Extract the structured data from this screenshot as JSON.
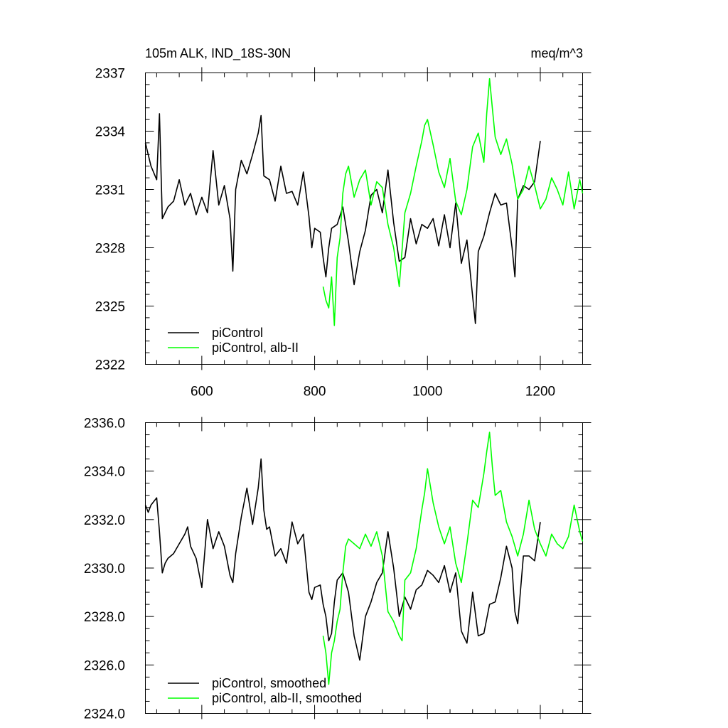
{
  "chart_data": [
    {
      "type": "line",
      "title": "105m ALK, IND_18S-30N",
      "units": "meq/m^3",
      "xlim": [
        500,
        1275
      ],
      "ylim": [
        2322,
        2337
      ],
      "xticks": [
        600,
        800,
        1000,
        1200
      ],
      "xtick_labels": [
        "600",
        "800",
        "1000",
        "1200"
      ],
      "yticks": [
        2322,
        2325,
        2328,
        2331,
        2334,
        2337
      ],
      "ytick_labels": [
        "2322",
        "2325",
        "2328",
        "2331",
        "2334",
        "2337"
      ],
      "legend_position": "bottom-left",
      "series": [
        {
          "name": "piControl",
          "color": "#000000",
          "x": [
            500,
            510,
            520,
            525,
            530,
            540,
            550,
            560,
            570,
            580,
            590,
            600,
            610,
            620,
            630,
            640,
            650,
            655,
            660,
            670,
            680,
            690,
            700,
            705,
            710,
            720,
            730,
            740,
            750,
            760,
            770,
            780,
            790,
            795,
            800,
            810,
            815,
            820,
            825,
            830,
            840,
            850,
            860,
            870,
            880,
            890,
            900,
            910,
            920,
            930,
            940,
            950,
            960,
            970,
            980,
            990,
            1000,
            1010,
            1020,
            1030,
            1040,
            1050,
            1060,
            1070,
            1080,
            1085,
            1090,
            1100,
            1110,
            1120,
            1130,
            1140,
            1150,
            1155,
            1160,
            1170,
            1180,
            1190,
            1200
          ],
          "y": [
            2333.4,
            2332.2,
            2331.5,
            2334.9,
            2329.5,
            2330.1,
            2330.4,
            2331.5,
            2330.2,
            2330.8,
            2329.7,
            2330.6,
            2329.8,
            2333.0,
            2330.2,
            2331.2,
            2329.5,
            2326.8,
            2331.0,
            2332.5,
            2331.8,
            2332.8,
            2333.9,
            2334.8,
            2331.7,
            2331.5,
            2330.4,
            2332.2,
            2330.8,
            2330.9,
            2330.2,
            2331.9,
            2329.6,
            2328.0,
            2329.0,
            2328.8,
            2327.5,
            2326.5,
            2328.0,
            2329.0,
            2329.2,
            2330.1,
            2328.3,
            2326.1,
            2327.8,
            2328.9,
            2330.7,
            2331.0,
            2329.8,
            2332.0,
            2329.3,
            2327.3,
            2327.5,
            2329.5,
            2328.2,
            2329.2,
            2329.0,
            2329.5,
            2328.1,
            2329.7,
            2328.0,
            2330.3,
            2327.2,
            2328.4,
            2325.5,
            2324.1,
            2327.8,
            2328.6,
            2329.8,
            2330.8,
            2330.2,
            2330.3,
            2328.0,
            2326.5,
            2330.5,
            2331.2,
            2331.0,
            2331.4,
            2333.5
          ]
        },
        {
          "name": "piControl, alb-II",
          "color": "#00ff00",
          "x": [
            815,
            820,
            825,
            830,
            835,
            840,
            845,
            850,
            855,
            860,
            870,
            880,
            890,
            900,
            910,
            920,
            930,
            940,
            950,
            960,
            970,
            980,
            990,
            995,
            1000,
            1010,
            1020,
            1030,
            1040,
            1050,
            1060,
            1070,
            1080,
            1090,
            1100,
            1105,
            1110,
            1115,
            1120,
            1130,
            1140,
            1150,
            1160,
            1170,
            1180,
            1190,
            1200,
            1210,
            1220,
            1230,
            1240,
            1250,
            1260,
            1270,
            1275
          ],
          "y": [
            2326.0,
            2325.3,
            2324.9,
            2326.5,
            2324.0,
            2327.5,
            2328.5,
            2330.8,
            2331.8,
            2332.2,
            2330.6,
            2331.5,
            2332.0,
            2330.2,
            2331.4,
            2331.1,
            2329.2,
            2328.0,
            2326.0,
            2329.8,
            2330.8,
            2332.2,
            2333.5,
            2334.3,
            2334.6,
            2333.3,
            2331.9,
            2331.1,
            2332.6,
            2330.4,
            2329.7,
            2331.0,
            2333.2,
            2333.9,
            2332.4,
            2334.9,
            2336.7,
            2335.2,
            2333.7,
            2332.8,
            2333.6,
            2332.3,
            2330.5,
            2331.0,
            2332.2,
            2331.2,
            2330.0,
            2330.5,
            2331.6,
            2331.0,
            2330.2,
            2331.9,
            2330.0,
            2331.5,
            2330.8
          ]
        }
      ]
    },
    {
      "type": "line",
      "xlim": [
        500,
        1275
      ],
      "ylim": [
        2324,
        2336
      ],
      "xticks": [
        600,
        800,
        1000,
        1200
      ],
      "yticks": [
        2324,
        2326,
        2328,
        2330,
        2332,
        2334,
        2336
      ],
      "ytick_labels": [
        "2324.0",
        "2326.0",
        "2328.0",
        "2330.0",
        "2332.0",
        "2334.0",
        "2336.0"
      ],
      "legend_position": "bottom-left",
      "series": [
        {
          "name": "piControl, smoothed",
          "color": "#000000",
          "x": [
            500,
            505,
            510,
            520,
            525,
            530,
            535,
            540,
            550,
            560,
            570,
            575,
            580,
            590,
            600,
            610,
            620,
            630,
            640,
            650,
            655,
            660,
            670,
            680,
            690,
            700,
            705,
            710,
            715,
            720,
            730,
            740,
            750,
            760,
            770,
            780,
            790,
            795,
            800,
            810,
            815,
            820,
            825,
            830,
            835,
            840,
            850,
            860,
            870,
            880,
            890,
            900,
            910,
            920,
            930,
            940,
            950,
            960,
            970,
            980,
            990,
            1000,
            1010,
            1020,
            1030,
            1040,
            1050,
            1060,
            1070,
            1080,
            1090,
            1100,
            1110,
            1120,
            1130,
            1140,
            1150,
            1155,
            1160,
            1170,
            1180,
            1190,
            1200
          ],
          "y": [
            2332.6,
            2332.3,
            2332.6,
            2332.9,
            2331.5,
            2329.8,
            2330.2,
            2330.4,
            2330.6,
            2331.0,
            2331.4,
            2331.7,
            2330.9,
            2330.4,
            2329.2,
            2332.0,
            2330.8,
            2331.5,
            2330.9,
            2329.7,
            2329.4,
            2330.6,
            2332.1,
            2333.3,
            2331.8,
            2333.3,
            2334.5,
            2332.4,
            2331.6,
            2331.7,
            2330.5,
            2330.8,
            2330.2,
            2331.9,
            2331.0,
            2331.4,
            2329.0,
            2328.7,
            2329.2,
            2329.3,
            2328.5,
            2328.0,
            2327.0,
            2327.3,
            2328.6,
            2329.5,
            2329.8,
            2329.0,
            2327.2,
            2326.2,
            2328.0,
            2328.6,
            2329.4,
            2329.8,
            2331.5,
            2330.0,
            2328.0,
            2328.8,
            2328.3,
            2329.1,
            2329.3,
            2329.9,
            2329.7,
            2329.4,
            2330.1,
            2329.0,
            2329.8,
            2327.4,
            2326.9,
            2329.0,
            2327.2,
            2327.3,
            2328.5,
            2328.6,
            2329.6,
            2330.9,
            2330.0,
            2328.2,
            2327.7,
            2330.5,
            2330.5,
            2330.3,
            2331.9
          ]
        },
        {
          "name": "piControl, alb-II, smoothed",
          "color": "#00ff00",
          "x": [
            815,
            820,
            825,
            830,
            835,
            840,
            845,
            850,
            855,
            860,
            870,
            880,
            890,
            900,
            910,
            920,
            930,
            940,
            950,
            955,
            960,
            970,
            980,
            990,
            995,
            1000,
            1010,
            1020,
            1030,
            1040,
            1050,
            1060,
            1070,
            1080,
            1090,
            1100,
            1105,
            1110,
            1115,
            1120,
            1130,
            1140,
            1150,
            1160,
            1170,
            1180,
            1190,
            1200,
            1210,
            1220,
            1230,
            1240,
            1250,
            1260,
            1270,
            1275
          ],
          "y": [
            2327.2,
            2326.5,
            2325.2,
            2326.5,
            2327.0,
            2327.8,
            2328.3,
            2329.8,
            2330.9,
            2331.2,
            2331.0,
            2330.8,
            2331.4,
            2330.9,
            2331.5,
            2330.5,
            2328.2,
            2327.8,
            2327.2,
            2327.0,
            2329.5,
            2329.8,
            2330.8,
            2332.4,
            2333.1,
            2334.1,
            2332.7,
            2331.7,
            2331.0,
            2331.7,
            2330.2,
            2329.4,
            2331.0,
            2332.8,
            2332.5,
            2333.9,
            2334.8,
            2335.6,
            2334.2,
            2333.0,
            2333.2,
            2331.9,
            2331.3,
            2330.5,
            2331.4,
            2332.8,
            2331.6,
            2331.0,
            2330.5,
            2331.4,
            2331.0,
            2330.8,
            2331.3,
            2332.6,
            2331.5,
            2331.1
          ]
        }
      ]
    }
  ]
}
